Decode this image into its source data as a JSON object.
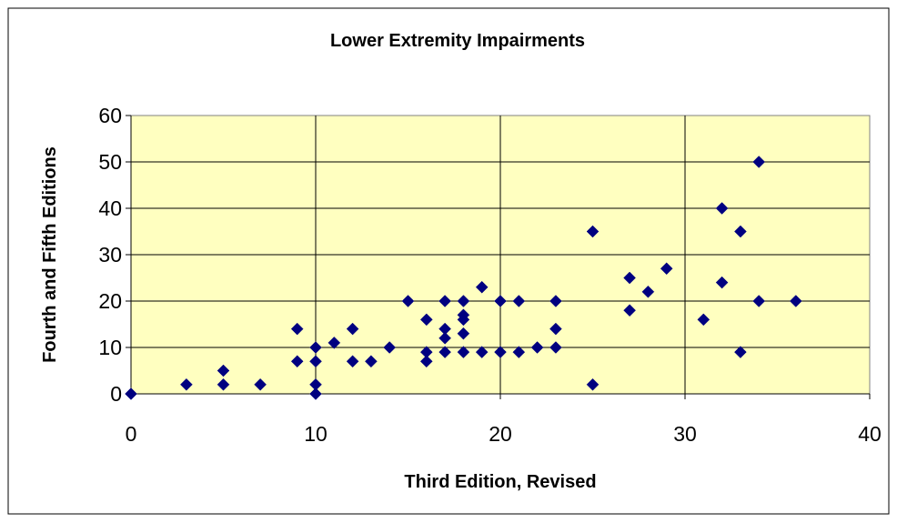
{
  "chart_data": {
    "type": "scatter",
    "title": "Lower Extremity Impairments",
    "xlabel": "Third Edition, Revised",
    "ylabel": "Fourth and Fifth Editions",
    "xlim": [
      0,
      40
    ],
    "ylim": [
      0,
      60
    ],
    "xticks": [
      0,
      10,
      20,
      30,
      40
    ],
    "yticks": [
      0,
      10,
      20,
      30,
      40,
      50,
      60
    ],
    "grid": "major gridlines",
    "legend": "none",
    "plot_background": "#FFFFC0",
    "marker_color": "#000080",
    "marker_shape": "diamond",
    "points": [
      [
        0,
        0
      ],
      [
        3,
        2
      ],
      [
        5,
        2
      ],
      [
        5,
        5
      ],
      [
        7,
        2
      ],
      [
        9,
        7
      ],
      [
        9,
        14
      ],
      [
        10,
        0
      ],
      [
        10,
        2
      ],
      [
        10,
        7
      ],
      [
        10,
        10
      ],
      [
        11,
        11
      ],
      [
        12,
        7
      ],
      [
        12,
        14
      ],
      [
        13,
        7
      ],
      [
        14,
        10
      ],
      [
        15,
        20
      ],
      [
        16,
        7
      ],
      [
        16,
        9
      ],
      [
        16,
        16
      ],
      [
        17,
        9
      ],
      [
        17,
        12
      ],
      [
        17,
        14
      ],
      [
        17,
        20
      ],
      [
        18,
        9
      ],
      [
        18,
        13
      ],
      [
        18,
        16
      ],
      [
        18,
        17
      ],
      [
        18,
        20
      ],
      [
        19,
        9
      ],
      [
        19,
        23
      ],
      [
        20,
        9
      ],
      [
        20,
        20
      ],
      [
        21,
        9
      ],
      [
        21,
        20
      ],
      [
        22,
        10
      ],
      [
        23,
        10
      ],
      [
        23,
        14
      ],
      [
        23,
        20
      ],
      [
        25,
        2
      ],
      [
        25,
        35
      ],
      [
        27,
        18
      ],
      [
        27,
        25
      ],
      [
        28,
        22
      ],
      [
        29,
        27
      ],
      [
        31,
        16
      ],
      [
        32,
        24
      ],
      [
        32,
        40
      ],
      [
        33,
        9
      ],
      [
        33,
        35
      ],
      [
        34,
        20
      ],
      [
        34,
        50
      ],
      [
        36,
        20
      ]
    ]
  }
}
